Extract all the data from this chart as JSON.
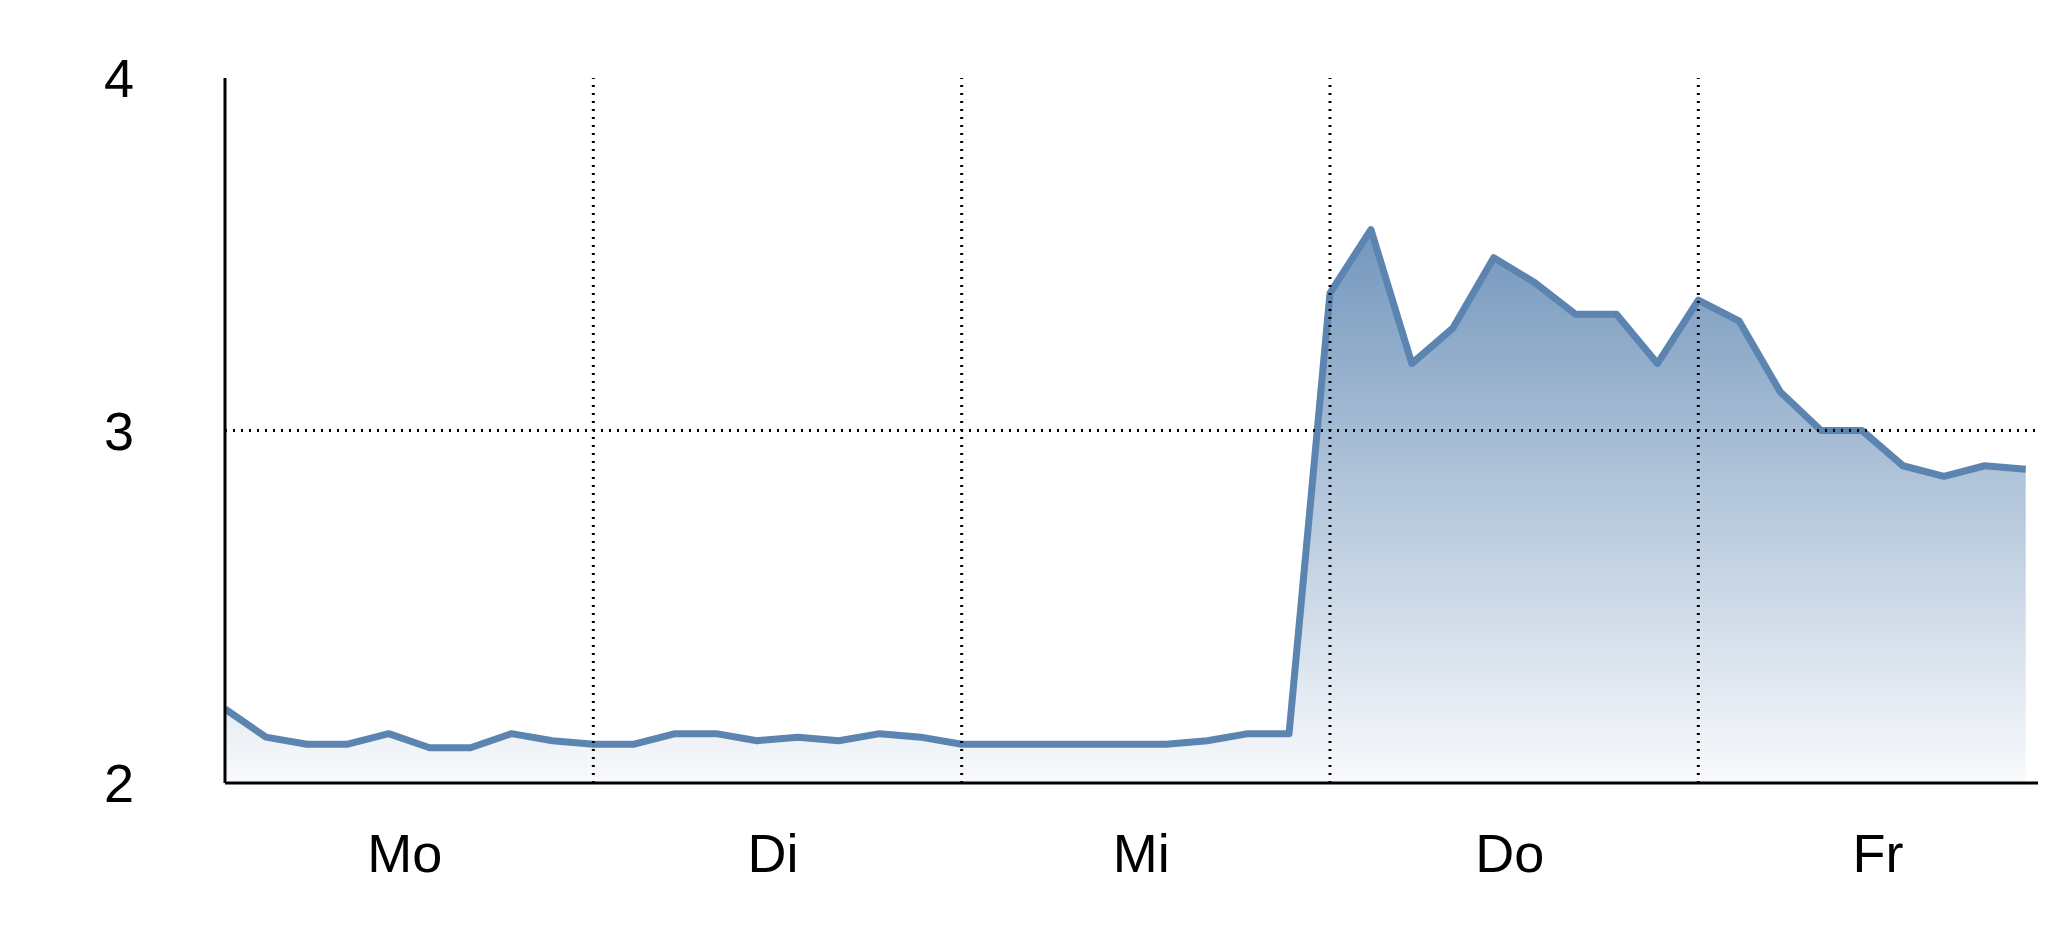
{
  "chart_data": {
    "type": "area",
    "categories": [
      null,
      null,
      null,
      null,
      "Mo",
      null,
      null,
      null,
      null,
      null,
      null,
      null,
      null,
      "Di",
      null,
      null,
      null,
      null,
      null,
      null,
      null,
      null,
      "Mi",
      null,
      null,
      null,
      null,
      null,
      null,
      null,
      null,
      "Do",
      null,
      null,
      null,
      null,
      null,
      null,
      null,
      null,
      "Fr",
      null,
      null,
      null,
      null
    ],
    "series": [
      {
        "color": "#5b84b1",
        "values": [
          2.21,
          2.13,
          2.11,
          2.11,
          2.14,
          2.1,
          2.1,
          2.14,
          2.12,
          2.11,
          2.11,
          2.14,
          2.14,
          2.12,
          2.13,
          2.12,
          2.14,
          2.13,
          2.11,
          2.11,
          2.11,
          2.11,
          2.11,
          2.11,
          2.12,
          2.14,
          2.14,
          3.39,
          3.57,
          3.19,
          3.29,
          3.49,
          3.42,
          3.33,
          3.33,
          3.19,
          3.37,
          3.31,
          3.11,
          3.0,
          3.0,
          2.9,
          2.87,
          2.9,
          2.89
        ]
      }
    ],
    "ylim": [
      2,
      4
    ],
    "yticks": [
      2,
      3,
      4
    ],
    "ref_lines": [
      {
        "axis": "y",
        "value": 3,
        "line_style": "dotted"
      }
    ],
    "grid": false,
    "marker": "none",
    "line_style": "solid"
  }
}
